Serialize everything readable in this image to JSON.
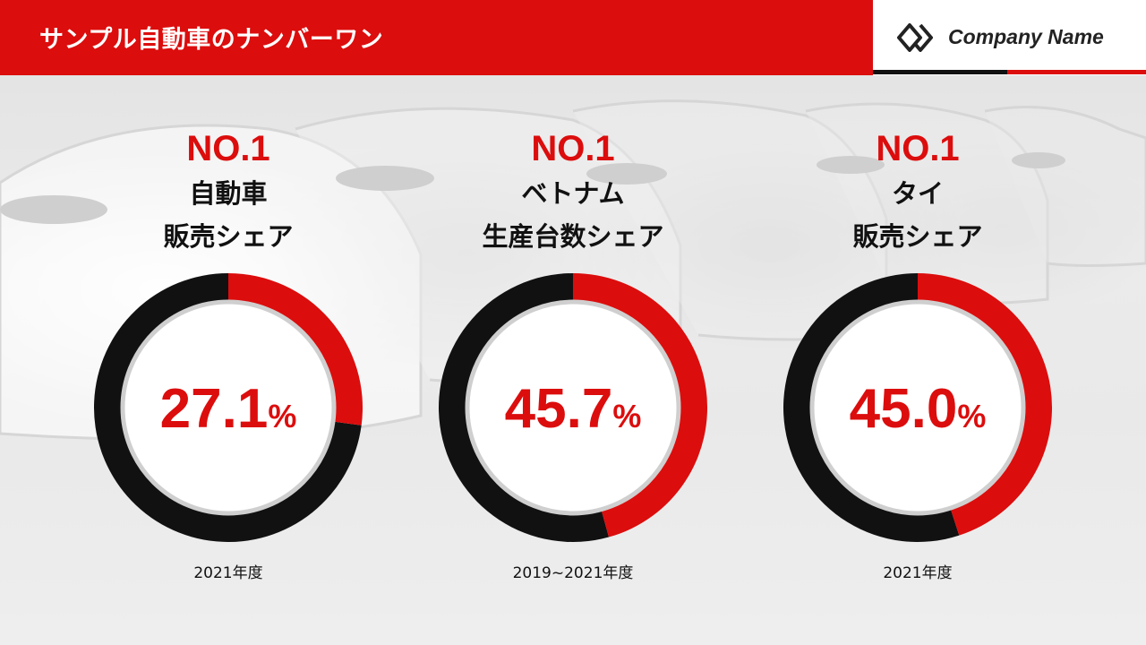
{
  "header": {
    "title": "サンプル自動車のナンバーワン",
    "company_name": "Company Name",
    "logo_icon": "diamond-logo-icon"
  },
  "colors": {
    "accent": "#dc0d0d",
    "ring_dark": "#111111",
    "ring_track_gray": "#cfcfcf"
  },
  "chart_data": [
    {
      "type": "pie",
      "title": "NO.1",
      "label_lines": [
        "自動車",
        "販売シェア"
      ],
      "value": 27.1,
      "value_text": "27.1",
      "unit": "%",
      "period": "2021年度"
    },
    {
      "type": "pie",
      "title": "NO.1",
      "label_lines": [
        "ベトナム",
        "生産台数シェア"
      ],
      "value": 45.7,
      "value_text": "45.7",
      "unit": "%",
      "period": "2019~2021年度"
    },
    {
      "type": "pie",
      "title": "NO.1",
      "label_lines": [
        "タイ",
        "販売シェア"
      ],
      "value": 45.0,
      "value_text": "45.0",
      "unit": "%",
      "period": "2021年度"
    }
  ]
}
